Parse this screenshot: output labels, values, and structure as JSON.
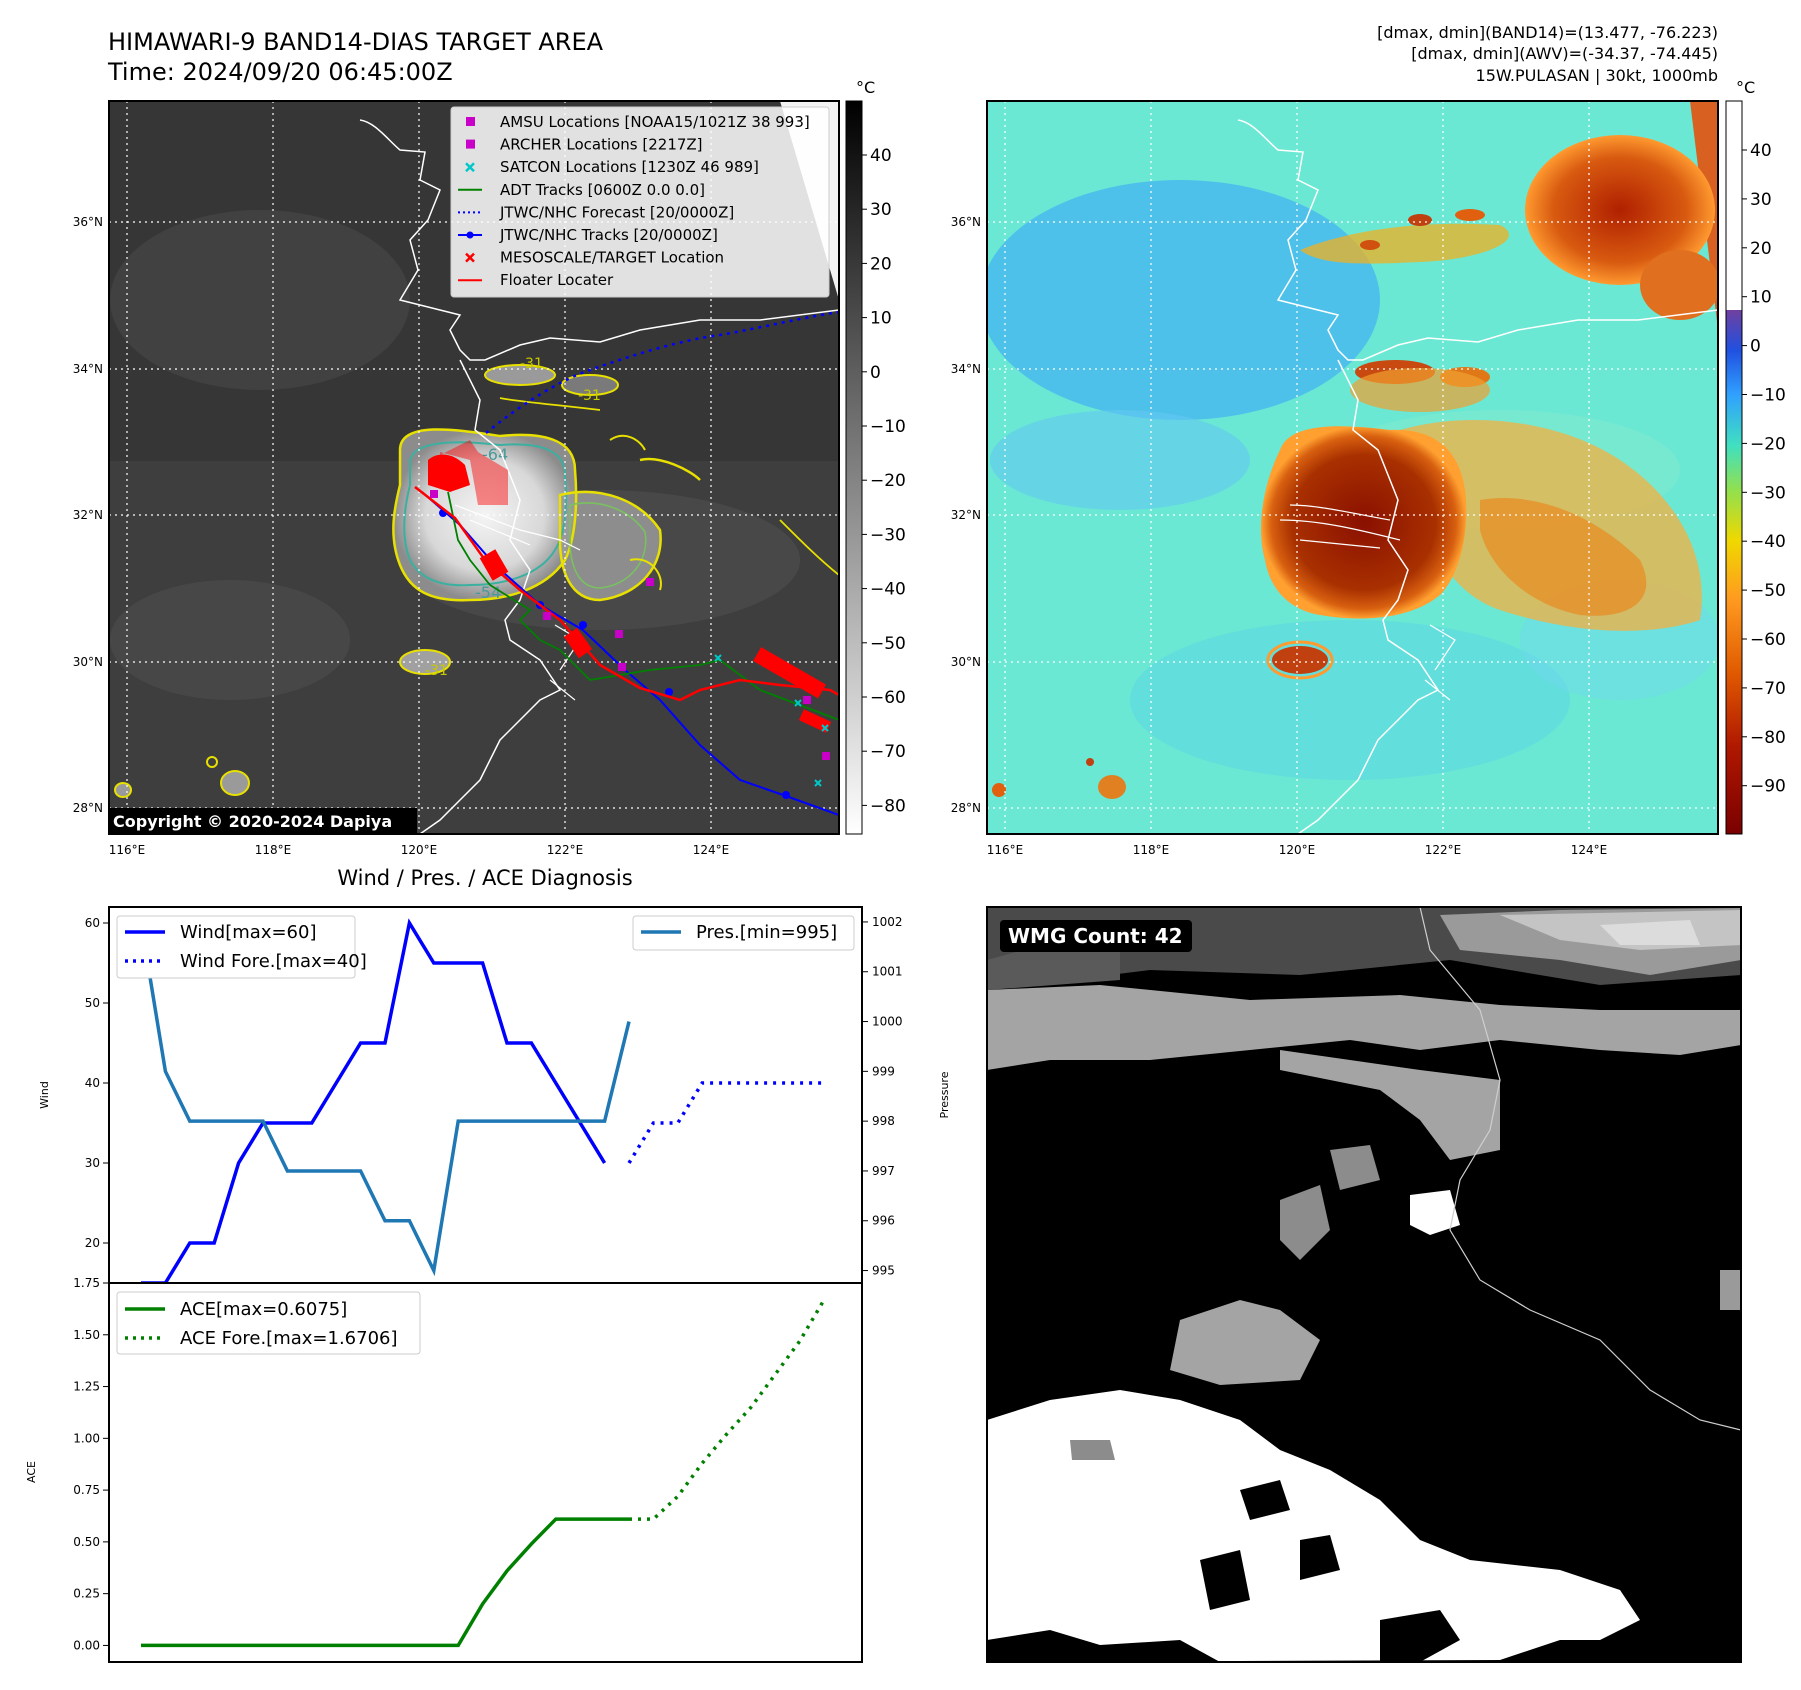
{
  "header": {
    "title_line1": "HIMAWARI-9 BAND14-DIAS TARGET AREA",
    "title_line2": "Time: 2024/09/20 06:45:00Z",
    "info_line1": "[dmax, dmin](BAND14)=(13.477, -76.223)",
    "info_line2": "[dmax, dmin](AWV)=(-34.37, -74.445)",
    "info_line3": "15W.PULASAN | 30kt, 1000mb"
  },
  "map": {
    "lon_labels": [
      "116°E",
      "118°E",
      "120°E",
      "122°E",
      "124°E"
    ],
    "lat_labels": [
      "36°N",
      "34°N",
      "32°N",
      "30°N",
      "28°N"
    ],
    "copyright": "Copyright © 2020-2024 Dapiya",
    "contour_labels": [
      "-31",
      "-31",
      "-64",
      "-54",
      "-31"
    ],
    "legend": [
      {
        "label": "AMSU Locations [NOAA15/1021Z 38 993]",
        "symbol": "square",
        "color": "#c800c8"
      },
      {
        "label": "ARCHER Locations [2217Z]",
        "symbol": "square",
        "color": "#c800c8"
      },
      {
        "label": "SATCON Locations [1230Z 46 989]",
        "symbol": "x",
        "color": "#00c8c8"
      },
      {
        "label": "ADT Tracks [0600Z 0.0 0.0]",
        "symbol": "line",
        "color": "#008000"
      },
      {
        "label": "JTWC/NHC Forecast [20/0000Z]",
        "symbol": "dotted",
        "color": "#0000ff"
      },
      {
        "label": "JTWC/NHC Tracks [20/0000Z]",
        "symbol": "line-dot",
        "color": "#0000ff"
      },
      {
        "label": "MESOSCALE/TARGET Location",
        "symbol": "x",
        "color": "#ff0000"
      },
      {
        "label": "Floater Locater",
        "symbol": "line",
        "color": "#ff0000"
      }
    ]
  },
  "colorbars": {
    "unit": "°C",
    "gray_ticks": [
      "40",
      "30",
      "20",
      "10",
      "0",
      "−10",
      "−20",
      "−30",
      "−40",
      "−50",
      "−60",
      "−70",
      "−80"
    ],
    "awv_ticks": [
      "40",
      "30",
      "20",
      "10",
      "0",
      "−10",
      "−20",
      "−30",
      "−40",
      "−50",
      "−60",
      "−70",
      "−80",
      "−90"
    ]
  },
  "wmg": {
    "label": "WMG Count: 42"
  },
  "chart_data": [
    {
      "type": "line",
      "title": "Wind / Pres. / ACE Diagnosis",
      "ylabel": "Wind",
      "y2label": "Pressure",
      "ylim": [
        15,
        62
      ],
      "y2lim": [
        994.75,
        1002.3
      ],
      "yticks": [
        "60",
        "50",
        "40",
        "30",
        "20"
      ],
      "y2ticks": [
        "1002",
        "1001",
        "1000",
        "999",
        "998",
        "997",
        "996",
        "995"
      ],
      "series": [
        {
          "name": "Wind[max=60]",
          "axis": "left",
          "style": "solid",
          "color": "#0000ff",
          "x": [
            0,
            1,
            2,
            3,
            4,
            5,
            6,
            7,
            8,
            9,
            10,
            11,
            12,
            13,
            14,
            15,
            16,
            17,
            18,
            19
          ],
          "values": [
            15,
            15,
            20,
            20,
            30,
            35,
            35,
            35,
            40,
            45,
            45,
            60,
            55,
            55,
            55,
            45,
            45,
            40,
            35,
            30
          ]
        },
        {
          "name": "Wind Fore.[max=40]",
          "axis": "left",
          "style": "dotted",
          "color": "#0000ff",
          "x": [
            20,
            21,
            22,
            23,
            24,
            25,
            26,
            27,
            28
          ],
          "values": [
            30,
            35,
            35,
            40,
            40,
            40,
            40,
            40,
            40
          ]
        },
        {
          "name": "Pres.[min=995]",
          "axis": "right",
          "style": "solid",
          "color": "#1f77b4",
          "x": [
            0,
            1,
            2,
            3,
            4,
            5,
            6,
            7,
            8,
            9,
            10,
            11,
            12,
            13,
            14,
            15,
            16,
            17,
            18,
            19,
            20
          ],
          "values": [
            1002,
            999,
            998,
            998,
            998,
            998,
            997,
            997,
            997,
            997,
            996,
            996,
            995,
            998,
            998,
            998,
            998,
            998,
            998,
            998,
            1000
          ]
        }
      ]
    },
    {
      "type": "line",
      "title": "",
      "ylabel": "ACE",
      "ylim": [
        -0.08,
        1.75
      ],
      "yticks": [
        "1.75",
        "1.50",
        "1.25",
        "1.00",
        "0.75",
        "0.50",
        "0.25",
        "0.00"
      ],
      "series": [
        {
          "name": "ACE[max=0.6075]",
          "style": "solid",
          "color": "#008000",
          "x": [
            0,
            1,
            2,
            3,
            4,
            5,
            6,
            7,
            8,
            9,
            10,
            11,
            12,
            13,
            14,
            15,
            16,
            17,
            18,
            19,
            20
          ],
          "values": [
            0,
            0,
            0,
            0,
            0,
            0,
            0,
            0,
            0,
            0,
            0,
            0,
            0,
            0,
            0.2,
            0.36,
            0.49,
            0.61,
            0.61,
            0.61,
            0.61
          ]
        },
        {
          "name": "ACE Fore.[max=1.6706]",
          "style": "dotted",
          "color": "#008000",
          "x": [
            20,
            21,
            22,
            23,
            24,
            25,
            26,
            27,
            28
          ],
          "values": [
            0.61,
            0.61,
            0.72,
            0.88,
            1.02,
            1.15,
            1.31,
            1.47,
            1.67
          ]
        }
      ]
    }
  ]
}
